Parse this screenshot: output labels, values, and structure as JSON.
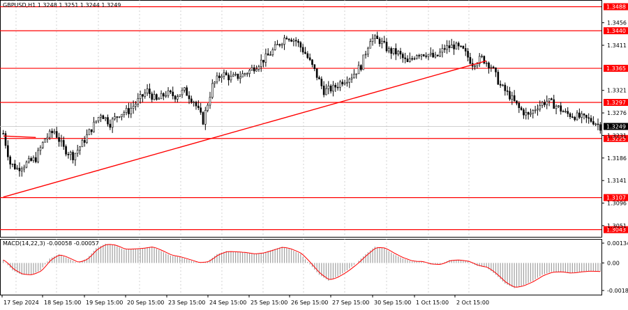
{
  "chart_data": {
    "type": "candlestick",
    "title": "GBPUSD,H1  1.3248 1.3251 1.3244 1.3249",
    "colors": {
      "level_line": "#ff0000",
      "level_label_bg": "#ff0000",
      "trendline": "#ff0000",
      "candles": "#000000",
      "grid": "#c8c8c8",
      "macd_hist": "#a0a0a0",
      "macd_signal": "#ff0000",
      "current_price_label_bg": "#000000"
    },
    "y_tick_labels": [
      "1.3456",
      "1.3411",
      "1.3321",
      "1.3276",
      "1.3231",
      "1.3186",
      "1.3141",
      "1.3096",
      "1.3051"
    ],
    "ylim": [
      1.303,
      1.35
    ],
    "support_resistance_levels": [
      {
        "value": 1.3488,
        "label": "1.3488"
      },
      {
        "value": 1.344,
        "label": "1.3440"
      },
      {
        "value": 1.3365,
        "label": "1.3365"
      },
      {
        "value": 1.3297,
        "label": "1.3297"
      },
      {
        "value": 1.3225,
        "label": "1.3225"
      },
      {
        "value": 1.3107,
        "label": "1.3107"
      },
      {
        "value": 1.3043,
        "label": "1.3043"
      }
    ],
    "current_price": {
      "value": 1.3249,
      "label": "1.3249"
    },
    "x_tick_labels": [
      "17 Sep 2024",
      "18 Sep 15:00",
      "19 Sep 15:00",
      "20 Sep 15:00",
      "23 Sep 15:00",
      "24 Sep 15:00",
      "25 Sep 15:00",
      "26 Sep 15:00",
      "27 Sep 15:00",
      "30 Sep 15:00",
      "1 Oct 15:00",
      "2 Oct 15:00"
    ],
    "trendline": {
      "start": {
        "bar": 0,
        "price": 1.3108
      },
      "end": {
        "bar": 208,
        "price": 1.338
      }
    },
    "short_segment": {
      "start": {
        "bar": 0,
        "price": 1.323
      },
      "end": {
        "bar": 14,
        "price": 1.3227
      }
    },
    "price_path": [
      [
        0,
        1.3235
      ],
      [
        3,
        1.3175
      ],
      [
        6,
        1.3165
      ],
      [
        10,
        1.3175
      ],
      [
        14,
        1.3185
      ],
      [
        18,
        1.3225
      ],
      [
        22,
        1.324
      ],
      [
        26,
        1.3205
      ],
      [
        30,
        1.319
      ],
      [
        34,
        1.3215
      ],
      [
        38,
        1.3245
      ],
      [
        42,
        1.3275
      ],
      [
        46,
        1.3255
      ],
      [
        50,
        1.3275
      ],
      [
        54,
        1.328
      ],
      [
        58,
        1.33
      ],
      [
        62,
        1.332
      ],
      [
        66,
        1.33
      ],
      [
        70,
        1.3315
      ],
      [
        74,
        1.331
      ],
      [
        78,
        1.332
      ],
      [
        82,
        1.33
      ],
      [
        86,
        1.326
      ],
      [
        90,
        1.333
      ],
      [
        94,
        1.3355
      ],
      [
        98,
        1.3345
      ],
      [
        102,
        1.335
      ],
      [
        106,
        1.336
      ],
      [
        110,
        1.3375
      ],
      [
        114,
        1.339
      ],
      [
        118,
        1.341
      ],
      [
        122,
        1.343
      ],
      [
        126,
        1.342
      ],
      [
        130,
        1.3395
      ],
      [
        134,
        1.336
      ],
      [
        138,
        1.332
      ],
      [
        142,
        1.3325
      ],
      [
        146,
        1.334
      ],
      [
        150,
        1.335
      ],
      [
        154,
        1.337
      ],
      [
        158,
        1.3425
      ],
      [
        162,
        1.342
      ],
      [
        166,
        1.34
      ],
      [
        170,
        1.3395
      ],
      [
        174,
        1.3375
      ],
      [
        178,
        1.3395
      ],
      [
        182,
        1.3395
      ],
      [
        186,
        1.3385
      ],
      [
        190,
        1.3405
      ],
      [
        194,
        1.341
      ],
      [
        198,
        1.34
      ],
      [
        202,
        1.3375
      ],
      [
        206,
        1.3385
      ],
      [
        210,
        1.337
      ],
      [
        214,
        1.333
      ],
      [
        218,
        1.331
      ],
      [
        222,
        1.3285
      ],
      [
        226,
        1.327
      ],
      [
        230,
        1.329
      ],
      [
        234,
        1.33
      ],
      [
        238,
        1.329
      ],
      [
        242,
        1.3275
      ],
      [
        246,
        1.327
      ],
      [
        250,
        1.3265
      ],
      [
        254,
        1.326
      ],
      [
        257,
        1.3249
      ]
    ],
    "bar_count": 258,
    "macd": {
      "label": "MACD(14,22,3) -0.00058 -0.00057",
      "y_tick_labels": [
        "0.00134",
        "0.00",
        "-0.00186"
      ],
      "ylim": [
        -0.00186,
        0.00134
      ],
      "hist_path": [
        [
          0,
          0.0002
        ],
        [
          4,
          -0.0005
        ],
        [
          8,
          -0.0008
        ],
        [
          12,
          -0.0008
        ],
        [
          16,
          -0.0005
        ],
        [
          20,
          0.0003
        ],
        [
          24,
          0.0006
        ],
        [
          28,
          0.0003
        ],
        [
          32,
          0.0
        ],
        [
          36,
          0.0003
        ],
        [
          40,
          0.001
        ],
        [
          44,
          0.0013
        ],
        [
          48,
          0.0012
        ],
        [
          52,
          0.0009
        ],
        [
          56,
          0.00095
        ],
        [
          60,
          0.001
        ],
        [
          64,
          0.0011
        ],
        [
          68,
          0.0008
        ],
        [
          72,
          0.0005
        ],
        [
          76,
          0.0004
        ],
        [
          80,
          0.0002
        ],
        [
          84,
          0.0
        ],
        [
          88,
          0.0001
        ],
        [
          92,
          0.0006
        ],
        [
          96,
          0.0008
        ],
        [
          100,
          0.00075
        ],
        [
          104,
          0.0007
        ],
        [
          108,
          0.0006
        ],
        [
          112,
          0.0007
        ],
        [
          116,
          0.0009
        ],
        [
          120,
          0.0011
        ],
        [
          124,
          0.0009
        ],
        [
          128,
          0.0006
        ],
        [
          132,
          -0.0001
        ],
        [
          136,
          -0.0008
        ],
        [
          140,
          -0.0012
        ],
        [
          144,
          -0.0009
        ],
        [
          148,
          -0.0005
        ],
        [
          152,
          0.0
        ],
        [
          156,
          0.0006
        ],
        [
          160,
          0.0011
        ],
        [
          164,
          0.001
        ],
        [
          168,
          0.0006
        ],
        [
          172,
          0.0003
        ],
        [
          176,
          0.0001
        ],
        [
          180,
          0.0001
        ],
        [
          184,
          -0.0001
        ],
        [
          188,
          -0.0001
        ],
        [
          192,
          0.0002
        ],
        [
          196,
          0.0002
        ],
        [
          200,
          0.0001
        ],
        [
          204,
          -0.0002
        ],
        [
          208,
          -0.0003
        ],
        [
          212,
          -0.0008
        ],
        [
          216,
          -0.0014
        ],
        [
          220,
          -0.0017
        ],
        [
          224,
          -0.0015
        ],
        [
          228,
          -0.0012
        ],
        [
          232,
          -0.0008
        ],
        [
          236,
          -0.0006
        ],
        [
          240,
          -0.0006
        ],
        [
          244,
          -0.0007
        ],
        [
          248,
          -0.0006
        ],
        [
          252,
          -0.00055
        ],
        [
          257,
          -0.00058
        ]
      ]
    }
  }
}
